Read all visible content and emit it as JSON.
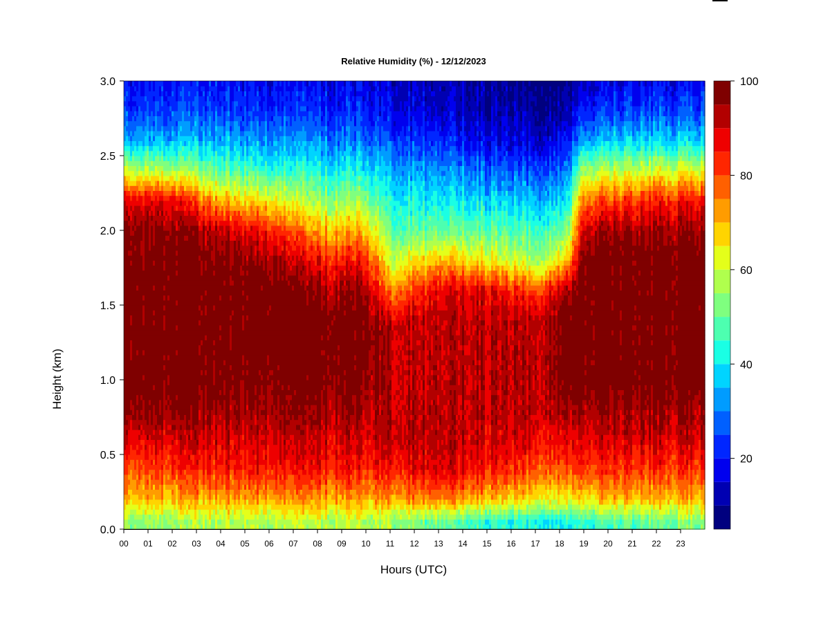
{
  "chart_data": {
    "type": "heatmap",
    "title": "Relative Humidity (%) - 12/12/2023",
    "xlabel": "Hours (UTC)",
    "ylabel": "Height (km)",
    "xlim": [
      0,
      24
    ],
    "ylim": [
      0,
      3
    ],
    "x_ticks": [
      {
        "value": 0,
        "label": "00"
      },
      {
        "value": 1,
        "label": "01"
      },
      {
        "value": 2,
        "label": "02"
      },
      {
        "value": 3,
        "label": "03"
      },
      {
        "value": 4,
        "label": "04"
      },
      {
        "value": 5,
        "label": "05"
      },
      {
        "value": 6,
        "label": "06"
      },
      {
        "value": 7,
        "label": "07"
      },
      {
        "value": 8,
        "label": "08"
      },
      {
        "value": 9,
        "label": "09"
      },
      {
        "value": 10,
        "label": "10"
      },
      {
        "value": 11,
        "label": "11"
      },
      {
        "value": 12,
        "label": "12"
      },
      {
        "value": 13,
        "label": "13"
      },
      {
        "value": 14,
        "label": "14"
      },
      {
        "value": 15,
        "label": "15"
      },
      {
        "value": 16,
        "label": "16"
      },
      {
        "value": 17,
        "label": "17"
      },
      {
        "value": 18,
        "label": "18"
      },
      {
        "value": 19,
        "label": "19"
      },
      {
        "value": 20,
        "label": "20"
      },
      {
        "value": 21,
        "label": "21"
      },
      {
        "value": 22,
        "label": "22"
      },
      {
        "value": 23,
        "label": "23"
      }
    ],
    "y_ticks": [
      {
        "value": 0.0,
        "label": "0.0"
      },
      {
        "value": 0.5,
        "label": "0.5"
      },
      {
        "value": 1.0,
        "label": "1.0"
      },
      {
        "value": 1.5,
        "label": "1.5"
      },
      {
        "value": 2.0,
        "label": "2.0"
      },
      {
        "value": 2.5,
        "label": "2.5"
      },
      {
        "value": 3.0,
        "label": "3.0"
      }
    ],
    "colorbar": {
      "range": [
        5,
        100
      ],
      "levels": [
        5,
        10,
        15,
        20,
        25,
        30,
        35,
        40,
        45,
        50,
        55,
        60,
        65,
        70,
        75,
        80,
        85,
        90,
        95,
        100
      ],
      "colors": [
        "#00007f",
        "#0000b2",
        "#0000ee",
        "#0026ff",
        "#0060ff",
        "#009cff",
        "#00d4ff",
        "#1affe4",
        "#4dffb0",
        "#7fff7f",
        "#b0ff4d",
        "#e4ff1a",
        "#ffd400",
        "#ff9c00",
        "#ff6000",
        "#ff2600",
        "#ee0000",
        "#b20000",
        "#7f0000"
      ],
      "ticks": [
        {
          "value": 20,
          "label": "20"
        },
        {
          "value": 40,
          "label": "40"
        },
        {
          "value": 60,
          "label": "60"
        },
        {
          "value": 80,
          "label": "80"
        },
        {
          "value": 100,
          "label": "100"
        }
      ]
    },
    "grid": false,
    "heights_km": [
      0.05,
      0.2,
      0.4,
      0.6,
      0.8,
      1.0,
      1.2,
      1.4,
      1.6,
      1.8,
      2.0,
      2.2,
      2.4,
      2.6,
      2.8,
      3.0
    ],
    "hours_utc": [
      0,
      2,
      4,
      6,
      8,
      10,
      11,
      13,
      15,
      17,
      18.3,
      19,
      21,
      23,
      24
    ],
    "rh_percent_profiles": [
      [
        55,
        70,
        80,
        90,
        98,
        100,
        100,
        100,
        100,
        100,
        98,
        90,
        60,
        35,
        25,
        20
      ],
      [
        55,
        70,
        82,
        90,
        97,
        100,
        100,
        100,
        100,
        100,
        97,
        88,
        58,
        35,
        25,
        20
      ],
      [
        58,
        72,
        85,
        90,
        95,
        100,
        100,
        100,
        100,
        98,
        92,
        70,
        50,
        35,
        25,
        20
      ],
      [
        58,
        72,
        85,
        90,
        95,
        98,
        100,
        100,
        100,
        95,
        85,
        65,
        45,
        32,
        22,
        18
      ],
      [
        58,
        72,
        85,
        90,
        95,
        98,
        100,
        100,
        95,
        85,
        70,
        55,
        42,
        30,
        22,
        18
      ],
      [
        58,
        72,
        85,
        90,
        95,
        98,
        100,
        100,
        95,
        85,
        70,
        55,
        42,
        30,
        22,
        18
      ],
      [
        56,
        72,
        85,
        92,
        92,
        92,
        92,
        90,
        75,
        60,
        50,
        42,
        35,
        25,
        18,
        15
      ],
      [
        50,
        75,
        90,
        92,
        92,
        92,
        92,
        92,
        88,
        70,
        50,
        40,
        32,
        22,
        15,
        12
      ],
      [
        45,
        70,
        85,
        90,
        92,
        92,
        92,
        92,
        88,
        65,
        50,
        38,
        28,
        18,
        12,
        10
      ],
      [
        42,
        65,
        80,
        88,
        92,
        92,
        92,
        92,
        80,
        55,
        45,
        35,
        25,
        15,
        10,
        8
      ],
      [
        42,
        65,
        80,
        88,
        95,
        100,
        100,
        100,
        95,
        70,
        52,
        40,
        30,
        20,
        12,
        10
      ],
      [
        45,
        68,
        82,
        90,
        95,
        100,
        100,
        100,
        100,
        100,
        92,
        78,
        58,
        35,
        22,
        15
      ],
      [
        48,
        70,
        82,
        90,
        95,
        100,
        100,
        100,
        100,
        100,
        95,
        82,
        60,
        38,
        25,
        18
      ],
      [
        52,
        70,
        82,
        90,
        95,
        100,
        100,
        100,
        100,
        100,
        95,
        85,
        62,
        38,
        25,
        18
      ],
      [
        52,
        70,
        82,
        90,
        95,
        100,
        100,
        100,
        100,
        100,
        95,
        85,
        62,
        38,
        25,
        18
      ]
    ]
  }
}
